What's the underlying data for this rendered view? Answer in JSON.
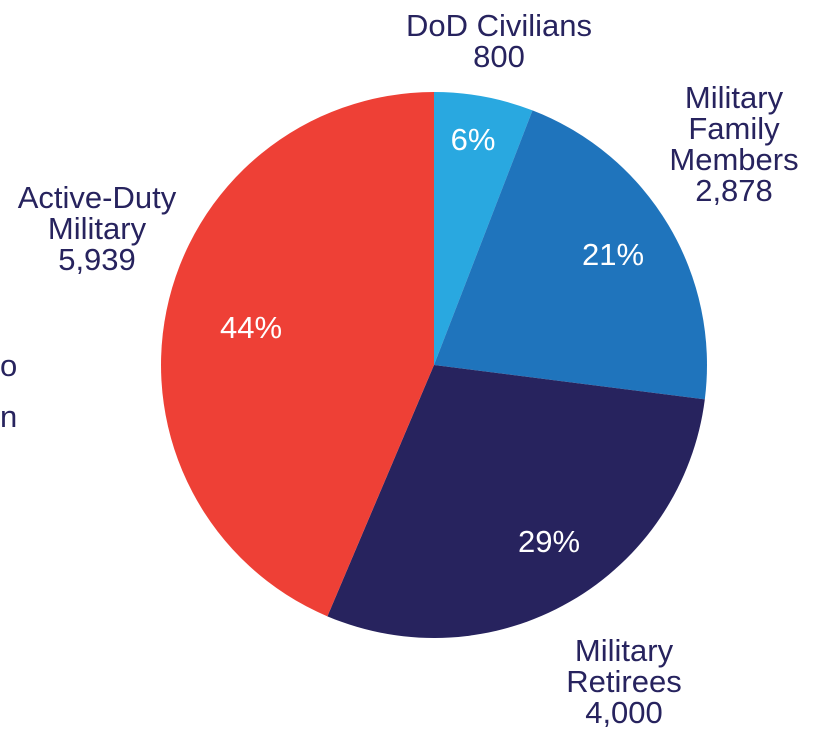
{
  "chart_data": {
    "type": "pie",
    "categories": [
      "DoD Civilians",
      "Military Family Members",
      "Military Retirees",
      "Active-Duty Military"
    ],
    "values": [
      800,
      2878,
      4000,
      5939
    ],
    "value_labels": [
      "800",
      "2,878",
      "4,000",
      "5,939"
    ],
    "label_lines": [
      [
        "DoD Civilians"
      ],
      [
        "Military",
        "Family",
        "Members"
      ],
      [
        "Military",
        "Retirees"
      ],
      [
        "Active-Duty",
        "Military"
      ]
    ],
    "percent_labels": [
      "6%",
      "21%",
      "29%",
      "44%"
    ],
    "colors": [
      "#29a8e0",
      "#1f74bc",
      "#27235e",
      "#ee4036"
    ],
    "title": "",
    "legend": "none",
    "start_angle": "12 o'clock",
    "direction": "clockwise"
  },
  "partial_text": {
    "line1": "o",
    "line2": "n"
  },
  "colors": {
    "label_text": "#27235e",
    "percent_text": "#ffffff",
    "background": "#ffffff"
  }
}
